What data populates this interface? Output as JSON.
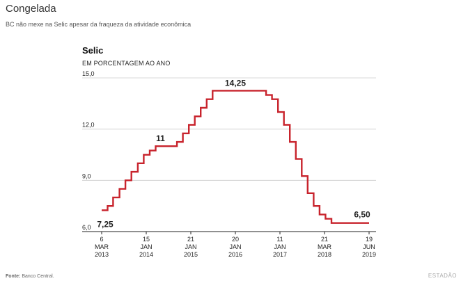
{
  "header": {
    "headline": "Congelada",
    "subhead": "BC não mexe na Selic apesar da fraqueza da atividade econômica"
  },
  "footer": {
    "source_label": "Fonte:",
    "source_text": "Banco Central.",
    "brand": "ESTADÃO"
  },
  "colors": {
    "line": "#c8232c",
    "grid": "#cccccc",
    "axis": "#222222"
  },
  "chart_data": {
    "type": "line",
    "title": "Selic",
    "subtitle": "EM PORCENTAGEM AO ANO",
    "ylim": [
      6.0,
      15.0
    ],
    "yticks": [
      {
        "value": 15.0,
        "label": "15,0"
      },
      {
        "value": 12.0,
        "label": "12,0"
      },
      {
        "value": 9.0,
        "label": "9,0"
      },
      {
        "value": 6.0,
        "label": "6,0"
      }
    ],
    "xlim": [
      0,
      64
    ],
    "xticks": [
      {
        "t": 0,
        "lines": [
          "6",
          "MAR",
          "2013"
        ]
      },
      {
        "t": 9,
        "lines": [
          "15",
          "JAN",
          "2014"
        ]
      },
      {
        "t": 18,
        "lines": [
          "21",
          "JAN",
          "2015"
        ]
      },
      {
        "t": 27,
        "lines": [
          "20",
          "JAN",
          "2016"
        ]
      },
      {
        "t": 36,
        "lines": [
          "11",
          "JAN",
          "2017"
        ]
      },
      {
        "t": 45,
        "lines": [
          "21",
          "MAR",
          "2018"
        ]
      },
      {
        "t": 54,
        "lines": [
          "19",
          "JUN",
          "2019"
        ]
      }
    ],
    "series": [
      {
        "name": "Selic",
        "step": true,
        "points": [
          {
            "t": 0,
            "y": 7.25
          },
          {
            "t": 1.2,
            "y": 7.5
          },
          {
            "t": 2.3,
            "y": 8.0
          },
          {
            "t": 3.6,
            "y": 8.5
          },
          {
            "t": 4.8,
            "y": 9.0
          },
          {
            "t": 6.0,
            "y": 9.5
          },
          {
            "t": 7.3,
            "y": 10.0
          },
          {
            "t": 8.5,
            "y": 10.5
          },
          {
            "t": 9.7,
            "y": 10.75
          },
          {
            "t": 10.9,
            "y": 11.0
          },
          {
            "t": 15.2,
            "y": 11.25
          },
          {
            "t": 16.4,
            "y": 11.75
          },
          {
            "t": 17.6,
            "y": 12.25
          },
          {
            "t": 18.8,
            "y": 12.75
          },
          {
            "t": 20.0,
            "y": 13.25
          },
          {
            "t": 21.2,
            "y": 13.75
          },
          {
            "t": 22.4,
            "y": 14.25
          },
          {
            "t": 33.2,
            "y": 14.0
          },
          {
            "t": 34.4,
            "y": 13.75
          },
          {
            "t": 35.6,
            "y": 13.0
          },
          {
            "t": 36.8,
            "y": 12.25
          },
          {
            "t": 38.0,
            "y": 11.25
          },
          {
            "t": 39.2,
            "y": 10.25
          },
          {
            "t": 40.4,
            "y": 9.25
          },
          {
            "t": 41.6,
            "y": 8.25
          },
          {
            "t": 42.8,
            "y": 7.5
          },
          {
            "t": 44.0,
            "y": 7.0
          },
          {
            "t": 45.2,
            "y": 6.75
          },
          {
            "t": 46.4,
            "y": 6.5
          },
          {
            "t": 54.0,
            "y": 6.5
          }
        ]
      }
    ],
    "annotations": [
      {
        "label": "7,25",
        "t": 0,
        "y": 7.25,
        "position": "below"
      },
      {
        "label": "11",
        "t": 13,
        "y": 11.0,
        "position": "above"
      },
      {
        "label": "14,25",
        "t": 27,
        "y": 14.25,
        "position": "above"
      },
      {
        "label": "6,50",
        "t": 54,
        "y": 6.5,
        "position": "above"
      }
    ]
  }
}
